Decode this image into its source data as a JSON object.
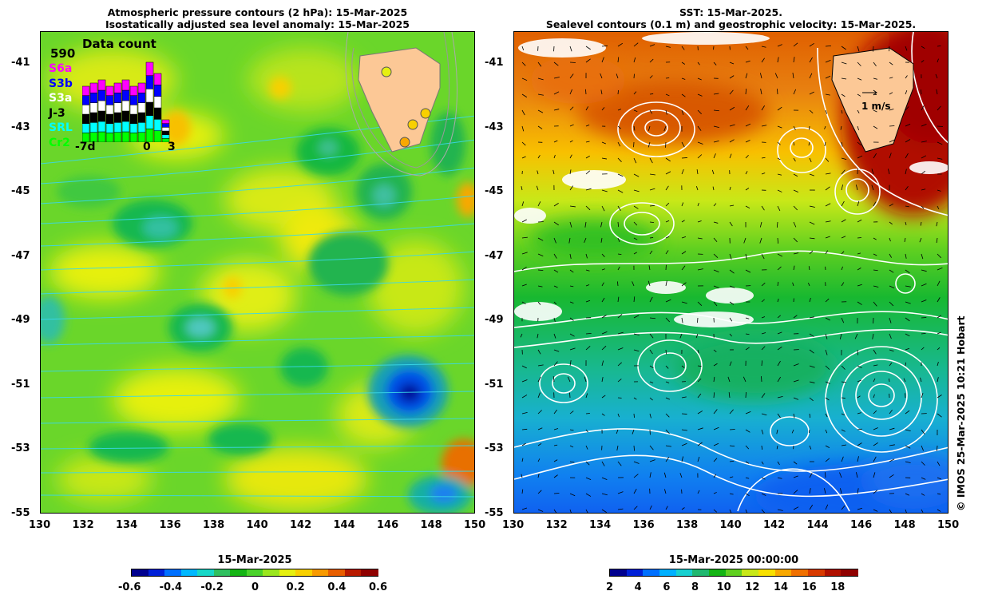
{
  "left_panel": {
    "title_line1": "Atmospheric pressure contours (2 hPa): 15-Mar-2025",
    "title_line2": "Isostatically adjusted sea level anomaly: 15-Mar-2025",
    "colorbar": {
      "title": "15-Mar-2025",
      "ticks": [
        "-0.6",
        "-0.4",
        "-0.2",
        "0",
        "0.2",
        "0.4",
        "0.6"
      ],
      "colors": [
        "#00008f",
        "#0020d8",
        "#0070ff",
        "#00b8ff",
        "#18d8c8",
        "#30c060",
        "#14b414",
        "#4ad22a",
        "#9ae61e",
        "#e6f010",
        "#f8d000",
        "#f89a00",
        "#e85e00",
        "#b81a00",
        "#8f0000"
      ]
    },
    "inset": {
      "title": "Data count",
      "count": "590",
      "missions": [
        {
          "name": "S6a",
          "color": "#ff00ff"
        },
        {
          "name": "S3b",
          "color": "#0000ff"
        },
        {
          "name": "S3a",
          "color": "#ffffff"
        },
        {
          "name": "J-3",
          "color": "#000000"
        },
        {
          "name": "SRL",
          "color": "#00ffff"
        },
        {
          "name": "Cr2",
          "color": "#00ff00"
        }
      ],
      "axis": [
        "-7d",
        "0",
        "3"
      ]
    }
  },
  "right_panel": {
    "title_line1": "SST: 15-Mar-2025.",
    "title_line2": "Sealevel contours (0.1 m) and geostrophic velocity: 15-Mar-2025.",
    "velocity_scale_label": "1 m/s",
    "colorbar": {
      "title": "15-Mar-2025 00:00:00",
      "ticks": [
        "2",
        "4",
        "6",
        "8",
        "10",
        "12",
        "14",
        "16",
        "18"
      ],
      "colors": [
        "#00008f",
        "#0020d8",
        "#0070ff",
        "#00b0ff",
        "#18d0d0",
        "#20b870",
        "#14b414",
        "#60d020",
        "#c8e818",
        "#f8e000",
        "#f8a800",
        "#f07000",
        "#d83a00",
        "#b01000",
        "#8f0000"
      ]
    }
  },
  "axes": {
    "lon_ticks": [
      "130",
      "132",
      "134",
      "136",
      "138",
      "140",
      "142",
      "144",
      "146",
      "148",
      "150"
    ],
    "lat_ticks": [
      "-41",
      "-43",
      "-45",
      "-47",
      "-49",
      "-51",
      "-53",
      "-55"
    ]
  },
  "credit": "© IMOS 25-Mar-2025 10:21 Hobart"
}
